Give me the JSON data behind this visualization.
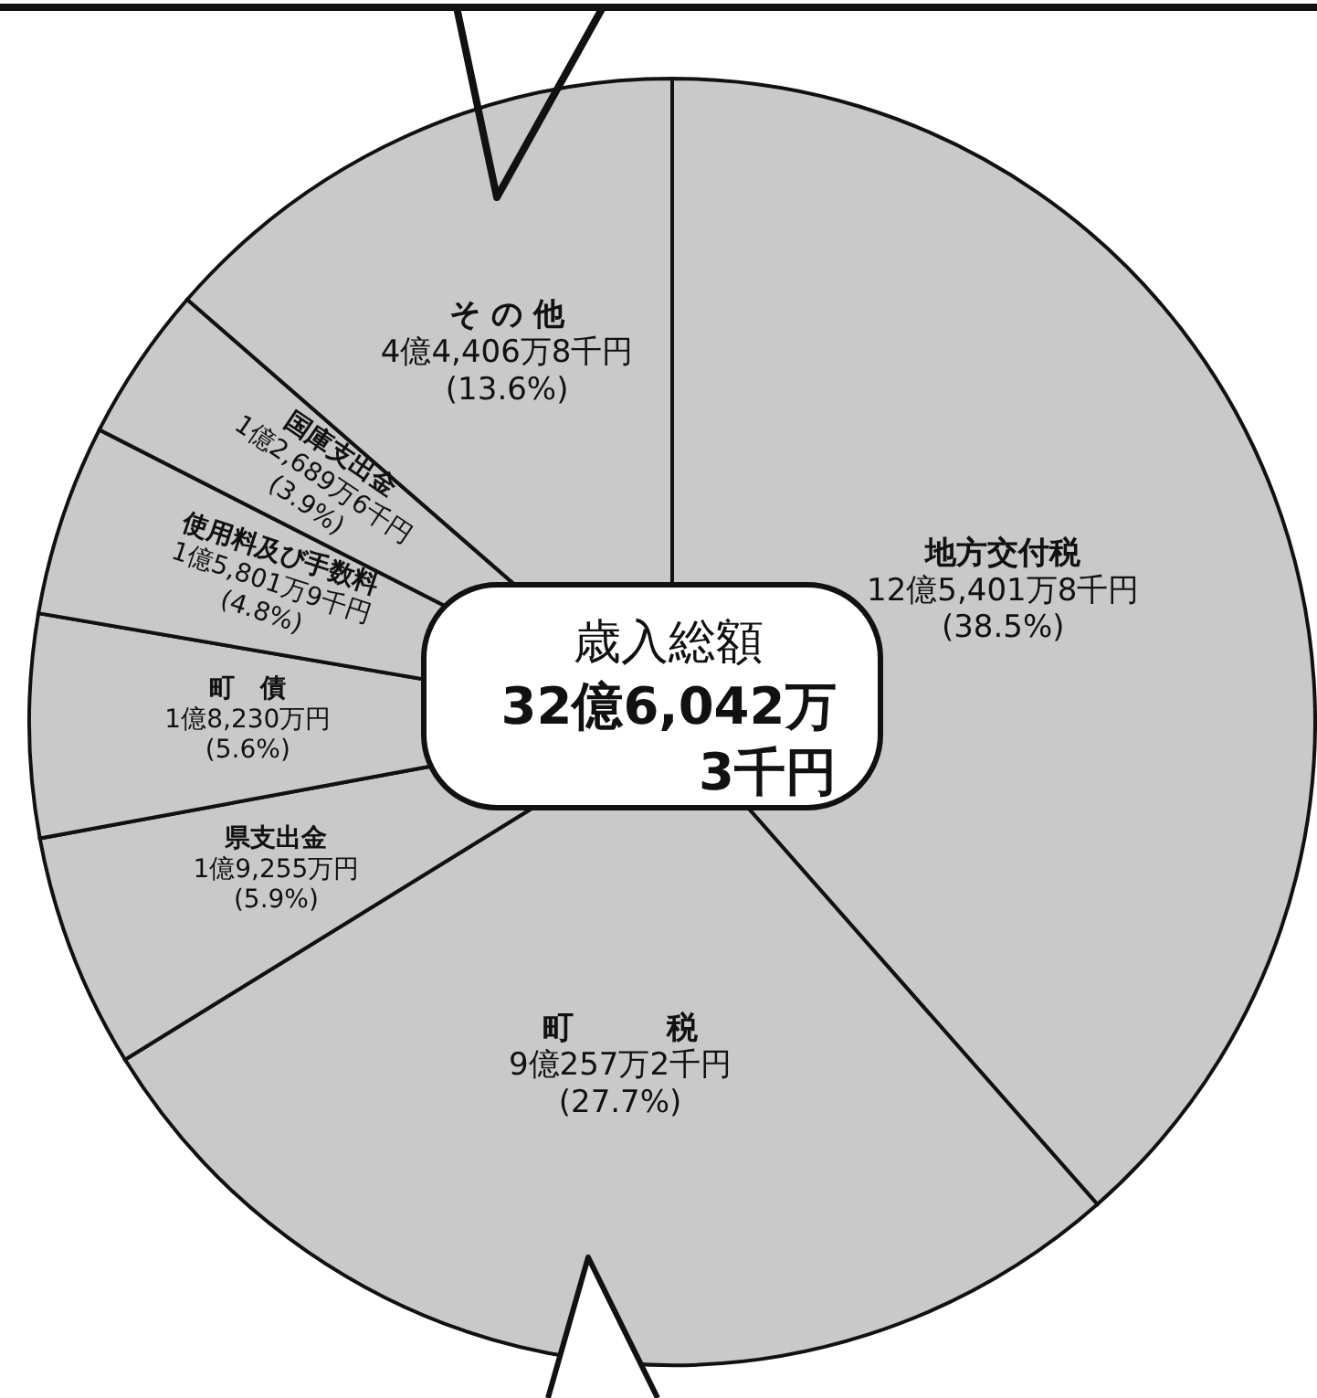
{
  "chart_data": {
    "type": "pie",
    "categories": [
      "地方交付税",
      "町　　　税",
      "県支出金",
      "町　債",
      "使用料及び手数料",
      "国庫支出金",
      "そ の 他"
    ],
    "values": [
      38.5,
      27.7,
      5.9,
      5.6,
      4.8,
      3.9,
      13.6
    ],
    "value_labels": [
      "12億5,401万8千円 (38.5%)",
      "9億257万2千円 (27.7%)",
      "1億9,255万円 (5.9%)",
      "1億8,230万円 (5.6%)",
      "1億5,801万9千円 (4.8%)",
      "1億2,689万6千円 (3.9%)",
      "4億4,406万8千円 (13.6%)"
    ],
    "colors": [
      "#c9c9c9",
      "#c9c9c9",
      "#c9c9c9",
      "#c9c9c9",
      "#c9c9c9",
      "#c9c9c9",
      "#c9c9c9"
    ],
    "annotations": [
      "歳入総額",
      "32億6,042万",
      "3千円"
    ]
  }
}
